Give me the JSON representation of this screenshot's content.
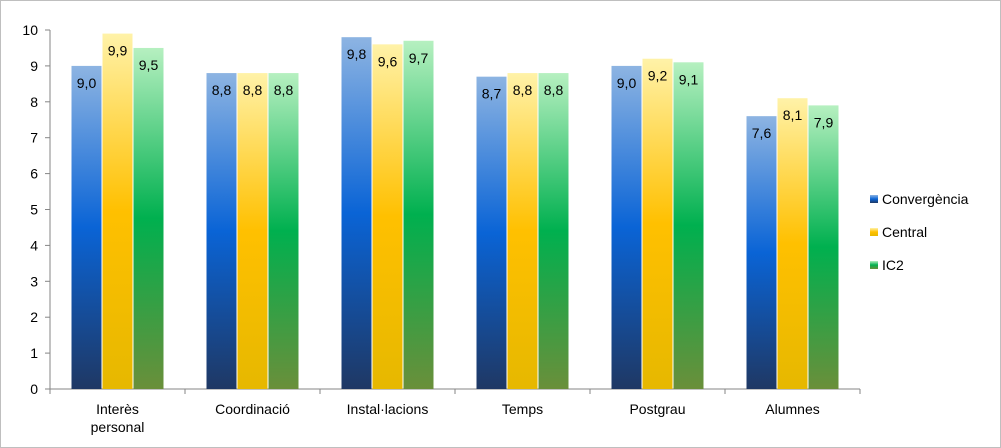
{
  "chart_data": {
    "type": "bar",
    "title": "",
    "xlabel": "",
    "ylabel": "",
    "ylim": [
      0,
      10
    ],
    "yticks": [
      "0",
      "1",
      "2",
      "3",
      "4",
      "5",
      "6",
      "7",
      "8",
      "9",
      "10"
    ],
    "categories": [
      [
        "Interès",
        "personal"
      ],
      [
        "Coordinació"
      ],
      [
        "Instal·lacions"
      ],
      [
        "Temps"
      ],
      [
        "Postgrau"
      ],
      [
        "Alumnes"
      ]
    ],
    "series": [
      {
        "name": "Convergència",
        "values": [
          9.0,
          8.8,
          9.8,
          8.7,
          9.0,
          7.6
        ],
        "labels": [
          "9,0",
          "8,8",
          "9,8",
          "8,7",
          "9,0",
          "7,6"
        ],
        "colors": {
          "top": "#8db4e2",
          "mid": "#0a64d6",
          "bottom": "#1f3864"
        }
      },
      {
        "name": "Central",
        "values": [
          9.9,
          8.8,
          9.6,
          8.8,
          9.2,
          8.1
        ],
        "labels": [
          "9,9",
          "8,8",
          "9,6",
          "8,8",
          "9,2",
          "8,1"
        ],
        "colors": {
          "top": "#fff2a8",
          "mid": "#ffc000",
          "bottom": "#e6b800"
        }
      },
      {
        "name": "IC2",
        "values": [
          9.5,
          8.8,
          9.7,
          8.8,
          9.1,
          7.9
        ],
        "labels": [
          "9,5",
          "8,8",
          "9,7",
          "8,8",
          "9,1",
          "7,9"
        ],
        "colors": {
          "top": "#b6f0c0",
          "mid": "#00b04f",
          "bottom": "#6a8f3a"
        }
      }
    ],
    "grid": false,
    "legend_position": "right"
  }
}
